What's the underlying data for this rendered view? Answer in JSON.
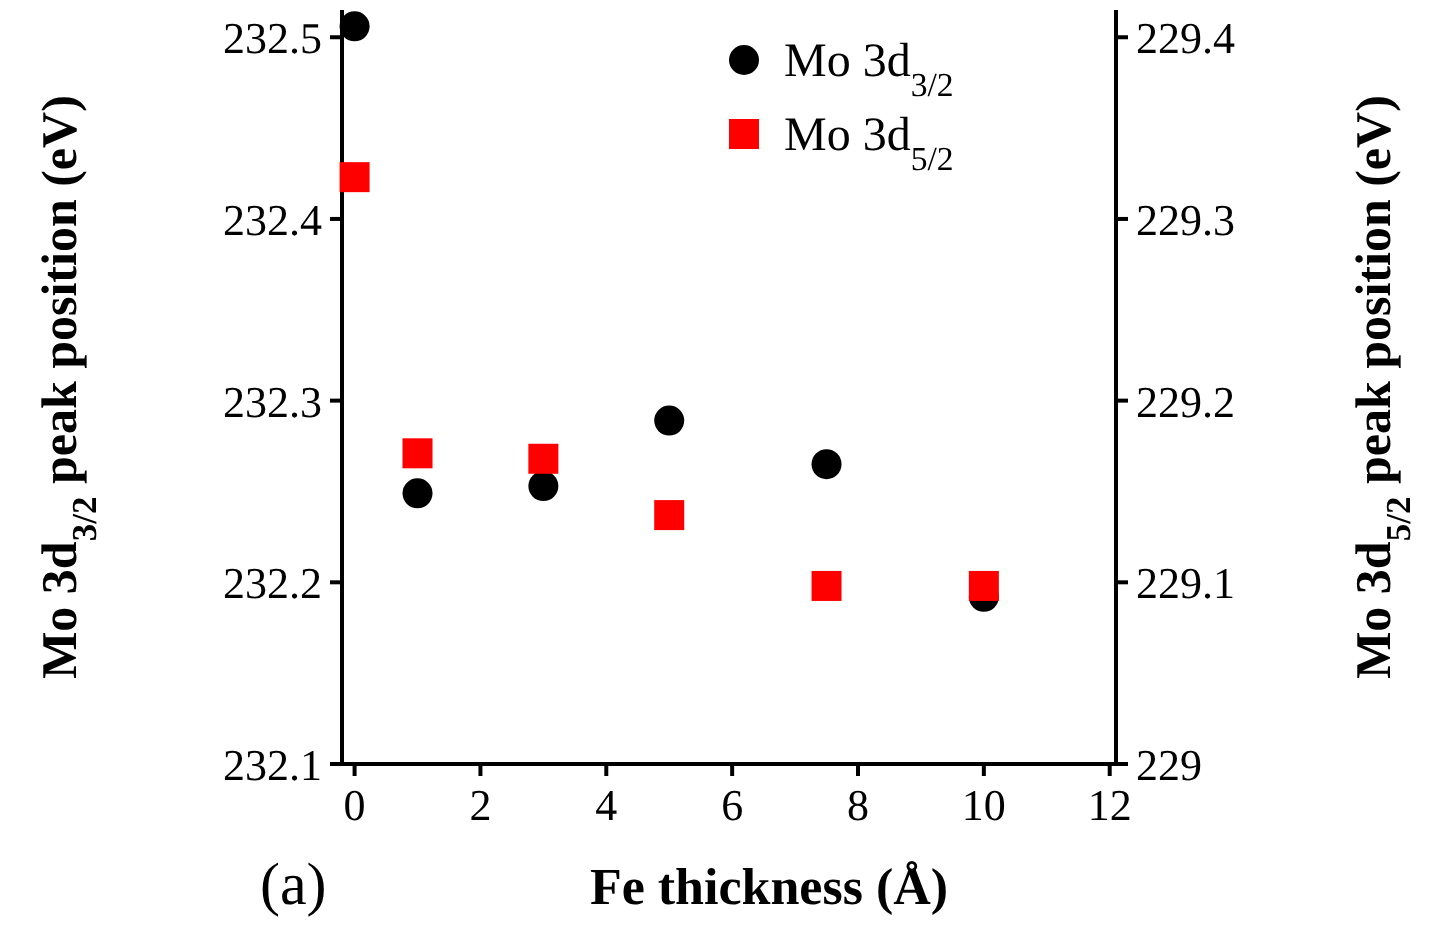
{
  "chart_data": {
    "type": "scatter",
    "xlabel": "Fe thickness (Å)",
    "ylabel": "Mo 3d$_{3/2}$ peak position (eV)",
    "y2label": "Mo 3d$_{5/2}$ peak position (eV)",
    "annotations": [
      "(a)"
    ],
    "x": [
      0,
      1,
      3,
      5,
      7.5,
      10
    ],
    "series": [
      {
        "name": "Mo 3d$_{3/2}$",
        "color": "#000000",
        "marker": "circle",
        "values": [
          232.506,
          232.249,
          232.253,
          232.289,
          232.265,
          232.192
        ]
      },
      {
        "name": "Mo 3d$_{5/2}$",
        "color": "#ff0000",
        "marker": "square",
        "axis": "y2",
        "values": [
          229.323,
          229.171,
          229.168,
          229.137,
          229.098,
          229.098
        ]
      }
    ],
    "xlim": [
      -0.2,
      12.1
    ],
    "xticks": [
      0,
      2,
      4,
      6,
      8,
      10,
      12
    ],
    "ylim": [
      232.1,
      232.515
    ],
    "yticks": [
      232.1,
      232.2,
      232.3,
      232.4,
      232.5
    ],
    "y2lim": [
      229,
      229.415
    ],
    "y2ticks": [
      229,
      229.1,
      229.2,
      229.3,
      229.4
    ],
    "legend": "top right"
  }
}
